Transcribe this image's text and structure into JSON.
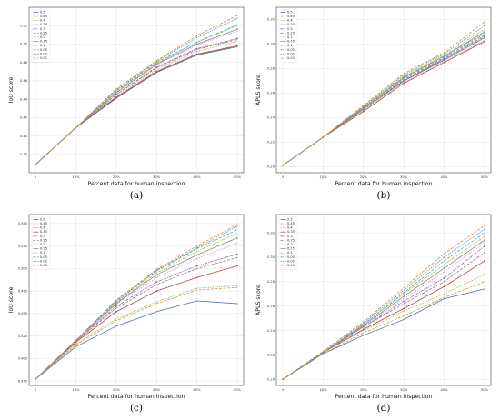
{
  "legend_labels": [
    "0.5",
    "0.45",
    "0.4",
    "0.35",
    "0.3",
    "0.25",
    "0.2",
    "0.15",
    "0.1",
    "0.05",
    "0.02",
    "0.01"
  ],
  "series_colors": [
    "#4c72b0",
    "#c8a040",
    "#9aa84a",
    "#b04a4a",
    "#8c64b4",
    "#9a7a70",
    "#d48ac8",
    "#8a8a8a",
    "#bcbc3a",
    "#40b0c8",
    "#4080c0",
    "#e08a30"
  ],
  "chart_data": [
    {
      "type": "line",
      "caption": "(a)",
      "xlabel": "Percent data for human inspection",
      "ylabel": "IoU score",
      "x": [
        "0",
        "10%",
        "20%",
        "30%",
        "40%",
        "50%"
      ],
      "ylim": [
        0.36,
        0.54
      ],
      "yticks": [
        0.38,
        0.4,
        0.42,
        0.44,
        0.46,
        0.48,
        0.5,
        0.52
      ],
      "series": [
        {
          "name": "0.5",
          "values": [
            0.369,
            0.409,
            0.441,
            0.469,
            0.488,
            0.497
          ]
        },
        {
          "name": "0.45",
          "values": [
            0.369,
            0.409,
            0.442,
            0.47,
            0.489,
            0.498
          ]
        },
        {
          "name": "0.4",
          "values": [
            0.369,
            0.409,
            0.443,
            0.472,
            0.492,
            0.503
          ]
        },
        {
          "name": "0.35",
          "values": [
            0.369,
            0.409,
            0.442,
            0.47,
            0.489,
            0.498
          ]
        },
        {
          "name": "0.3",
          "values": [
            0.369,
            0.409,
            0.445,
            0.475,
            0.495,
            0.506
          ]
        },
        {
          "name": "0.25",
          "values": [
            0.369,
            0.409,
            0.445,
            0.474,
            0.494,
            0.505
          ]
        },
        {
          "name": "0.2",
          "values": [
            0.369,
            0.409,
            0.447,
            0.477,
            0.499,
            0.514
          ]
        },
        {
          "name": "0.15",
          "values": [
            0.369,
            0.409,
            0.447,
            0.478,
            0.5,
            0.516
          ]
        },
        {
          "name": "0.1",
          "values": [
            0.369,
            0.409,
            0.448,
            0.479,
            0.502,
            0.52
          ]
        },
        {
          "name": "0.05",
          "values": [
            0.369,
            0.409,
            0.449,
            0.48,
            0.502,
            0.521
          ]
        },
        {
          "name": "0.02",
          "values": [
            0.369,
            0.409,
            0.45,
            0.481,
            0.507,
            0.528
          ]
        },
        {
          "name": "0.01",
          "values": [
            0.369,
            0.409,
            0.451,
            0.482,
            0.509,
            0.531
          ]
        }
      ]
    },
    {
      "type": "line",
      "caption": "(b)",
      "xlabel": "Percent data for human inspection",
      "ylabel": "APLS score",
      "x": [
        "0",
        "10%",
        "20%",
        "30%",
        "40%",
        "50%"
      ],
      "ylim": [
        0.195,
        0.33
      ],
      "yticks": [
        0.2,
        0.22,
        0.24,
        0.26,
        0.28,
        0.3,
        0.32
      ],
      "series": [
        {
          "name": "0.5",
          "values": [
            0.201,
            0.224,
            0.247,
            0.27,
            0.287,
            0.305
          ]
        },
        {
          "name": "0.45",
          "values": [
            0.201,
            0.224,
            0.247,
            0.271,
            0.288,
            0.307
          ]
        },
        {
          "name": "0.4",
          "values": [
            0.201,
            0.224,
            0.246,
            0.269,
            0.286,
            0.303
          ]
        },
        {
          "name": "0.35",
          "values": [
            0.201,
            0.224,
            0.245,
            0.268,
            0.285,
            0.302
          ]
        },
        {
          "name": "0.3",
          "values": [
            0.201,
            0.224,
            0.247,
            0.27,
            0.288,
            0.306
          ]
        },
        {
          "name": "0.25",
          "values": [
            0.201,
            0.224,
            0.247,
            0.271,
            0.289,
            0.308
          ]
        },
        {
          "name": "0.2",
          "values": [
            0.201,
            0.224,
            0.248,
            0.272,
            0.29,
            0.309
          ]
        },
        {
          "name": "0.15",
          "values": [
            0.201,
            0.224,
            0.248,
            0.273,
            0.29,
            0.31
          ]
        },
        {
          "name": "0.1",
          "values": [
            0.201,
            0.224,
            0.249,
            0.274,
            0.291,
            0.312
          ]
        },
        {
          "name": "0.05",
          "values": [
            0.201,
            0.224,
            0.248,
            0.272,
            0.29,
            0.31
          ]
        },
        {
          "name": "0.02",
          "values": [
            0.201,
            0.224,
            0.249,
            0.275,
            0.292,
            0.315
          ]
        },
        {
          "name": "0.01",
          "values": [
            0.201,
            0.224,
            0.25,
            0.276,
            0.293,
            0.318
          ]
        }
      ]
    },
    {
      "type": "line",
      "caption": "(c)",
      "xlabel": "Percent data for human inspection",
      "ylabel": "IoU score",
      "x": [
        "0",
        "10%",
        "20%",
        "30%",
        "40%",
        "50%"
      ],
      "ylim": [
        0.37,
        0.56
      ],
      "yticks": [
        0.375,
        0.4,
        0.425,
        0.45,
        0.475,
        0.5,
        0.525,
        0.55
      ],
      "series": [
        {
          "name": "0.5",
          "values": [
            0.377,
            0.413,
            0.436,
            0.452,
            0.464,
            0.461
          ]
        },
        {
          "name": "0.45",
          "values": [
            0.377,
            0.415,
            0.442,
            0.461,
            0.476,
            0.479
          ]
        },
        {
          "name": "0.4",
          "values": [
            0.377,
            0.416,
            0.444,
            0.463,
            0.478,
            0.481
          ]
        },
        {
          "name": "0.35",
          "values": [
            0.377,
            0.418,
            0.452,
            0.475,
            0.49,
            0.503
          ]
        },
        {
          "name": "0.3",
          "values": [
            0.377,
            0.419,
            0.458,
            0.485,
            0.503,
            0.516
          ]
        },
        {
          "name": "0.25",
          "values": [
            0.377,
            0.419,
            0.456,
            0.482,
            0.5,
            0.512
          ]
        },
        {
          "name": "0.2",
          "values": [
            0.377,
            0.42,
            0.46,
            0.49,
            0.511,
            0.528
          ]
        },
        {
          "name": "0.15",
          "values": [
            0.377,
            0.42,
            0.461,
            0.493,
            0.515,
            0.534
          ]
        },
        {
          "name": "0.1",
          "values": [
            0.377,
            0.42,
            0.462,
            0.495,
            0.519,
            0.539
          ]
        },
        {
          "name": "0.05",
          "values": [
            0.377,
            0.42,
            0.463,
            0.497,
            0.522,
            0.543
          ]
        },
        {
          "name": "0.02",
          "values": [
            0.377,
            0.42,
            0.464,
            0.498,
            0.523,
            0.547
          ]
        },
        {
          "name": "0.01",
          "values": [
            0.377,
            0.42,
            0.465,
            0.499,
            0.525,
            0.549
          ]
        }
      ]
    },
    {
      "type": "line",
      "caption": "(d)",
      "xlabel": "Percent data for human inspection",
      "ylabel": "APLS score",
      "x": [
        "0",
        "10%",
        "20%",
        "30%",
        "40%",
        "50%"
      ],
      "ylim": [
        0.195,
        0.335
      ],
      "yticks": [
        0.2,
        0.22,
        0.24,
        0.26,
        0.28,
        0.3,
        0.32
      ],
      "series": [
        {
          "name": "0.5",
          "values": [
            0.2,
            0.221,
            0.236,
            0.249,
            0.266,
            0.274
          ]
        },
        {
          "name": "0.45",
          "values": [
            0.2,
            0.221,
            0.238,
            0.252,
            0.267,
            0.28
          ]
        },
        {
          "name": "0.4",
          "values": [
            0.2,
            0.222,
            0.24,
            0.256,
            0.27,
            0.286
          ]
        },
        {
          "name": "0.35",
          "values": [
            0.2,
            0.222,
            0.241,
            0.258,
            0.276,
            0.297
          ]
        },
        {
          "name": "0.3",
          "values": [
            0.2,
            0.222,
            0.243,
            0.264,
            0.283,
            0.309
          ]
        },
        {
          "name": "0.25",
          "values": [
            0.2,
            0.222,
            0.243,
            0.262,
            0.28,
            0.304
          ]
        },
        {
          "name": "0.2",
          "values": [
            0.2,
            0.222,
            0.244,
            0.266,
            0.288,
            0.312
          ]
        },
        {
          "name": "0.15",
          "values": [
            0.2,
            0.222,
            0.244,
            0.268,
            0.291,
            0.314
          ]
        },
        {
          "name": "0.1",
          "values": [
            0.2,
            0.222,
            0.245,
            0.27,
            0.294,
            0.317
          ]
        },
        {
          "name": "0.05",
          "values": [
            0.2,
            0.222,
            0.245,
            0.271,
            0.297,
            0.32
          ]
        },
        {
          "name": "0.02",
          "values": [
            0.2,
            0.222,
            0.246,
            0.273,
            0.3,
            0.323
          ]
        },
        {
          "name": "0.01",
          "values": [
            0.2,
            0.223,
            0.247,
            0.275,
            0.303,
            0.326
          ]
        }
      ]
    }
  ]
}
